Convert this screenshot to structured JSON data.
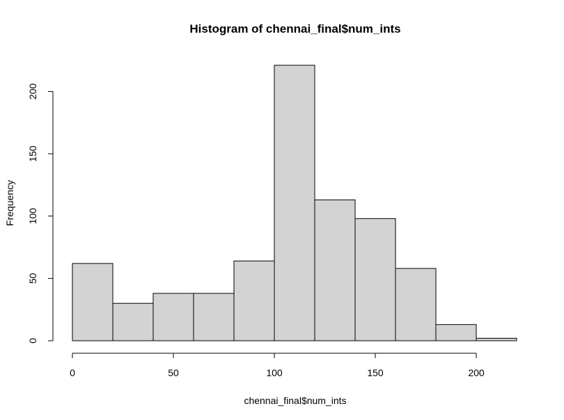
{
  "chart_data": {
    "type": "bar",
    "title": "Histogram of chennai_final$num_ints",
    "xlabel": "chennai_final$num_ints",
    "ylabel": "Frequency",
    "bins": [
      {
        "from": 0,
        "to": 20,
        "count": 62
      },
      {
        "from": 20,
        "to": 40,
        "count": 30
      },
      {
        "from": 40,
        "to": 60,
        "count": 38
      },
      {
        "from": 60,
        "to": 80,
        "count": 38
      },
      {
        "from": 80,
        "to": 100,
        "count": 64
      },
      {
        "from": 100,
        "to": 120,
        "count": 221
      },
      {
        "from": 120,
        "to": 140,
        "count": 113
      },
      {
        "from": 140,
        "to": 160,
        "count": 98
      },
      {
        "from": 160,
        "to": 180,
        "count": 58
      },
      {
        "from": 180,
        "to": 200,
        "count": 13
      },
      {
        "from": 200,
        "to": 220,
        "count": 2
      }
    ],
    "x_ticks": [
      "0",
      "50",
      "100",
      "150",
      "200"
    ],
    "y_ticks": [
      "0",
      "50",
      "100",
      "150",
      "200"
    ],
    "xlim": [
      0,
      220
    ],
    "ylim": [
      0,
      221
    ],
    "grid": false,
    "colors": {
      "bar_fill": "#d3d3d3",
      "bar_border": "#000000"
    }
  }
}
